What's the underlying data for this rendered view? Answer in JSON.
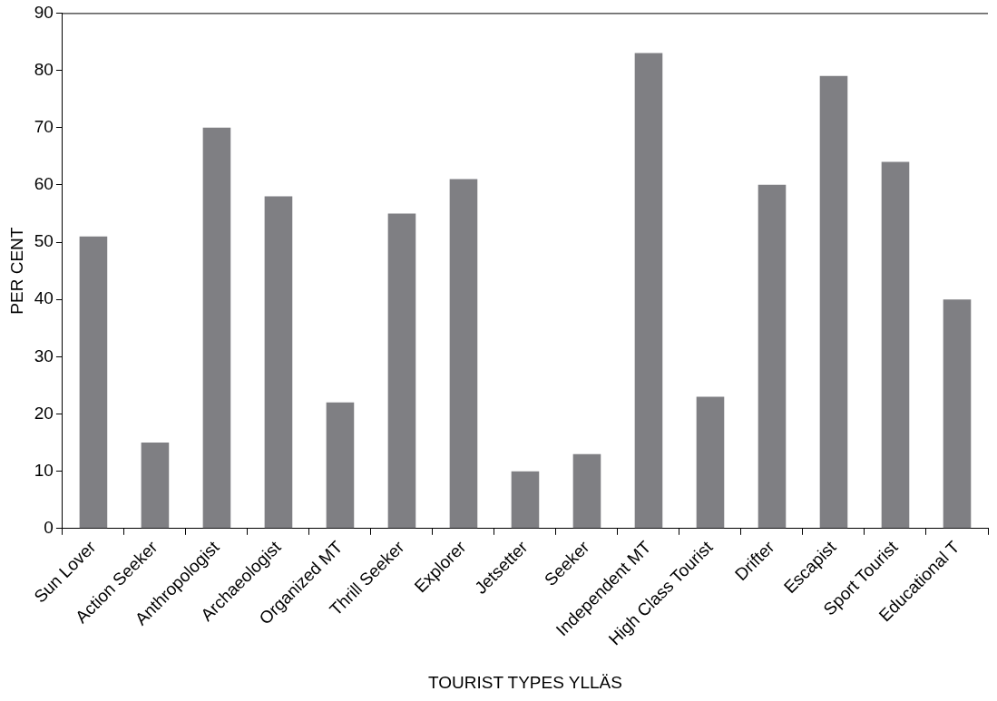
{
  "chart_data": {
    "type": "bar",
    "xlabel": "TOURIST TYPES YLLÄS",
    "ylabel": "PER CENT",
    "categories": [
      "Sun Lover",
      "Action Seeker",
      "Anthropologist",
      "Archaeologist",
      "Organized MT",
      "Thrill Seeker",
      "Explorer",
      "Jetsetter",
      "Seeker",
      "Independent MT",
      "High Class Tourist",
      "Drifter",
      "Escapist",
      "Sport Tourist",
      "Educational T"
    ],
    "values": [
      51,
      15,
      70,
      58,
      22,
      55,
      61,
      10,
      13,
      83,
      23,
      60,
      79,
      64,
      40
    ],
    "color": "#7f7f83",
    "ylim": [
      0,
      90
    ],
    "yticks": [
      0,
      10,
      20,
      30,
      40,
      50,
      60,
      70,
      80,
      90
    ],
    "grid": false,
    "legend": false
  }
}
